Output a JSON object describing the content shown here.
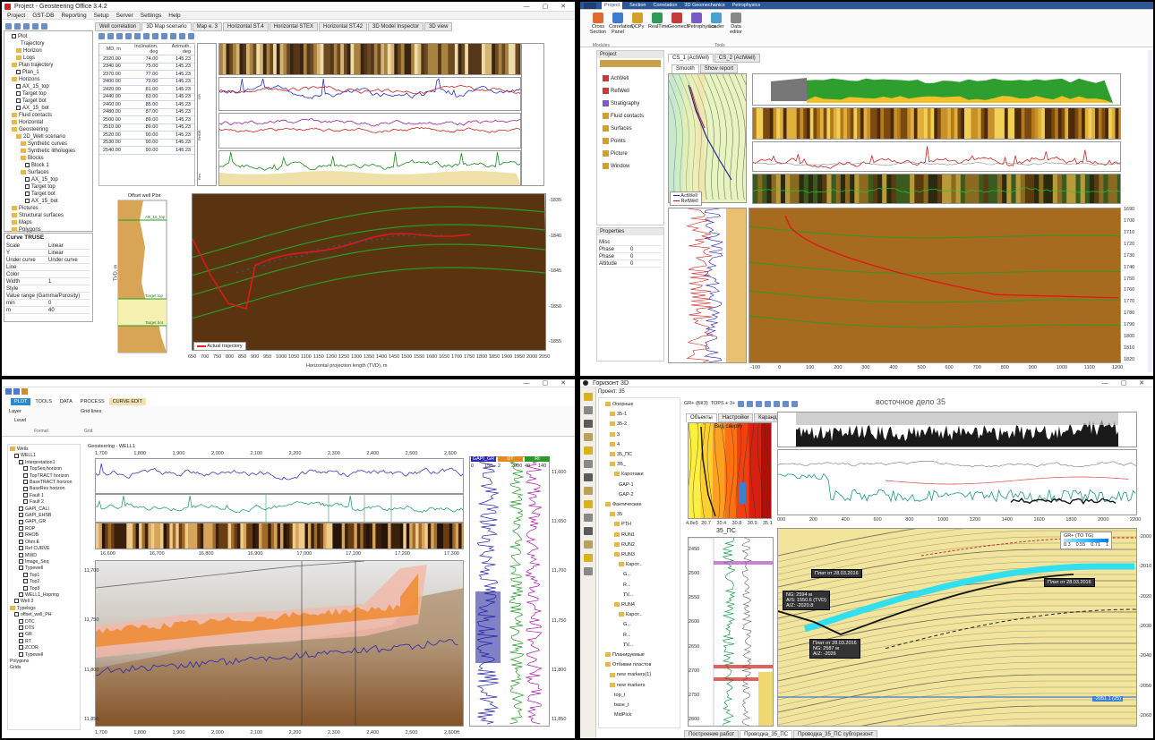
{
  "q1": {
    "window_title": "Project - Geosteering Office 3.4.2",
    "menu": [
      "Project",
      "GST-DB",
      "Reporting",
      "Setup",
      "Server",
      "Settings",
      "Help"
    ],
    "tabs": [
      "Well correlation",
      "3D Map scenario",
      "Map e. 3",
      "Horizontal ST.4",
      "Horizontal STEX",
      "Horizontal ST.42",
      "3D Model Inspector",
      "3D view"
    ],
    "tree": [
      {
        "label": "Plot",
        "indent": 1,
        "type": "check"
      },
      {
        "label": "Trajectory",
        "indent": 3,
        "type": "none"
      },
      {
        "label": "Horizon",
        "indent": 2,
        "type": "folder"
      },
      {
        "label": "Logs",
        "indent": 2,
        "type": "folder"
      },
      {
        "label": "Plan trajectory",
        "indent": 1,
        "type": "folder"
      },
      {
        "label": "Plan_1",
        "indent": 2,
        "type": "check"
      },
      {
        "label": "Horizons",
        "indent": 1,
        "type": "folder"
      },
      {
        "label": "AX_15_top",
        "indent": 2,
        "type": "check"
      },
      {
        "label": "Target top",
        "indent": 2,
        "type": "check"
      },
      {
        "label": "Target bot",
        "indent": 2,
        "type": "check"
      },
      {
        "label": "AX_15_bot",
        "indent": 2,
        "type": "check"
      },
      {
        "label": "Fluid contacts",
        "indent": 1,
        "type": "folder"
      },
      {
        "label": "Horizontal",
        "indent": 1,
        "type": "folder"
      },
      {
        "label": "Geosteering",
        "indent": 1,
        "type": "folder"
      },
      {
        "label": "2D_Well scenario",
        "indent": 2,
        "type": "folder"
      },
      {
        "label": "Synthetic curves",
        "indent": 3,
        "type": "folder"
      },
      {
        "label": "Synthetic lithologies",
        "indent": 3,
        "type": "folder"
      },
      {
        "label": "Blocks",
        "indent": 3,
        "type": "folder"
      },
      {
        "label": "Block 1",
        "indent": 4,
        "type": "check"
      },
      {
        "label": "Surfaces",
        "indent": 3,
        "type": "folder"
      },
      {
        "label": "AX_15_top",
        "indent": 4,
        "type": "check"
      },
      {
        "label": "Target top",
        "indent": 4,
        "type": "check"
      },
      {
        "label": "Target bot",
        "indent": 4,
        "type": "check"
      },
      {
        "label": "AX_15_bot",
        "indent": 4,
        "type": "check"
      },
      {
        "label": "Pictures",
        "indent": 1,
        "type": "folder"
      },
      {
        "label": "Structural surfaces",
        "indent": 1,
        "type": "folder"
      },
      {
        "label": "Maps",
        "indent": 1,
        "type": "folder"
      },
      {
        "label": "Polygons",
        "indent": 1,
        "type": "folder"
      },
      {
        "label": "Well correlations",
        "indent": 1,
        "type": "folder"
      },
      {
        "label": "3D",
        "indent": 1,
        "type": "folder"
      },
      {
        "label": "3D view",
        "indent": 2,
        "type": "none"
      }
    ],
    "props_title": "Curve TRUSE",
    "props": [
      {
        "k": "Scale",
        "v": "Linear"
      },
      {
        "k": "Y",
        "v": "Linear"
      },
      {
        "k": "Under curve",
        "v": "Under curve"
      },
      {
        "k": "Line",
        "v": ""
      },
      {
        "k": "Color",
        "v": ""
      },
      {
        "k": "Width",
        "v": "1"
      },
      {
        "k": "Style",
        "v": ""
      },
      {
        "k": "Value range (Gamma/Porosity)",
        "v": ""
      },
      {
        "k": "min",
        "v": "0"
      },
      {
        "k": "m",
        "v": "40"
      }
    ],
    "table_headers": [
      "MD, m",
      "Inclination, deg",
      "Azimuth, deg"
    ],
    "table_rows": [
      [
        "2320.00",
        "74.00",
        "145.23"
      ],
      [
        "2340.00",
        "75.00",
        "145.23"
      ],
      [
        "2370.00",
        "77.00",
        "145.23"
      ],
      [
        "2400.00",
        "79.00",
        "145.23"
      ],
      [
        "2420.00",
        "81.00",
        "145.23"
      ],
      [
        "2440.00",
        "83.00",
        "145.23"
      ],
      [
        "2460.00",
        "85.00",
        "145.23"
      ],
      [
        "2480.00",
        "87.00",
        "145.23"
      ],
      [
        "2500.00",
        "89.00",
        "145.23"
      ],
      [
        "2510.00",
        "89.00",
        "145.23"
      ],
      [
        "2520.00",
        "90.00",
        "145.23"
      ],
      [
        "2530.00",
        "90.00",
        "145.23"
      ],
      [
        "2540.00",
        "90.00",
        "145.23"
      ]
    ],
    "log_panel_title": "Offset well Plot",
    "section_labels": [
      "AX_15_top",
      "Target top",
      "Target bot"
    ],
    "legend": "Actual trajectory",
    "xaxis_label": "Horizontal projection length (TVD), m",
    "xticks": [
      "650",
      "700",
      "750",
      "800",
      "850",
      "900",
      "950",
      "1000",
      "1050",
      "1100",
      "1150",
      "1200",
      "1250",
      "1300",
      "1350",
      "1400",
      "1450",
      "1500",
      "1550",
      "1600",
      "1650",
      "1700",
      "1750",
      "1800",
      "1850",
      "1900",
      "1950",
      "2000",
      "2050"
    ],
    "yticks_left": [
      "1895",
      "1900",
      "1905",
      "1910",
      "1915",
      "1920"
    ],
    "yticks_right": [
      "-1835",
      "-1840",
      "-1845",
      "-1850",
      "-1855"
    ],
    "yaxis_label": "TVD, m"
  },
  "q2": {
    "ribbon_tabs": [
      "Project",
      "Section",
      "Correlation",
      "3D Geomechanics",
      "Petrophysics"
    ],
    "ribbon_buttons": [
      "Cross Section",
      "Correlation Panel",
      "QCPy",
      "RealTime",
      "Geomech",
      "Petrophysics",
      "Loader",
      "Data editor"
    ],
    "ribbon_groups": [
      "Modules",
      "Tools"
    ],
    "project_label": "Project",
    "project_tree": [
      "ActWell",
      "RefWell",
      "Stratigraphy",
      "Fluid contacts",
      "Surfaces",
      "Points",
      "Picture",
      "Window"
    ],
    "doc_tabs": [
      "CS_1 (ActWell)",
      "CS_2 (ActWell)"
    ],
    "view_buttons": [
      "Smooth",
      "Show report"
    ],
    "properties_label": "Properties",
    "properties": [
      {
        "k": "Misc",
        "v": ""
      },
      {
        "k": "Phase",
        "v": "0"
      },
      {
        "k": "Phase",
        "v": "0"
      },
      {
        "k": "Altitude",
        "v": "0"
      }
    ],
    "map_legend": [
      "ActWell",
      "RefWell"
    ],
    "depth_ticks": [
      "1690",
      "1700",
      "1710",
      "1720",
      "1730",
      "1740",
      "1750",
      "1760",
      "1770",
      "1780",
      "1790",
      "1800",
      "1810",
      "1820"
    ],
    "x_ticks": [
      "-100",
      "0",
      "100",
      "200",
      "300",
      "400",
      "500",
      "600",
      "700",
      "800",
      "900",
      "1000",
      "1100",
      "1200"
    ]
  },
  "q3": {
    "ribbon_tabs": [
      "PLOT",
      "TOOLS",
      "DATA",
      "PROCESS",
      "CURVE EDIT"
    ],
    "ribbon_groups": [
      "Format",
      "Grid"
    ],
    "ribbon_items": [
      "Layer",
      "Level",
      "Grid lines"
    ],
    "tree": [
      {
        "label": "Wells",
        "indent": 0,
        "type": "folder"
      },
      {
        "label": "WELL1",
        "indent": 1,
        "type": "check"
      },
      {
        "label": "Interpretation1",
        "indent": 2,
        "type": "check"
      },
      {
        "label": "TopSeq horizon",
        "indent": 3,
        "type": "check"
      },
      {
        "label": "TopTRACT horizon",
        "indent": 3,
        "type": "check"
      },
      {
        "label": "BaseTRACT horizon",
        "indent": 3,
        "type": "check"
      },
      {
        "label": "BaseRes horizon",
        "indent": 3,
        "type": "check"
      },
      {
        "label": "Fault 1",
        "indent": 3,
        "type": "check"
      },
      {
        "label": "Fault 2",
        "indent": 3,
        "type": "check"
      },
      {
        "label": "GAPI_CALI",
        "indent": 2,
        "type": "check"
      },
      {
        "label": "GAPI_EHSB",
        "indent": 2,
        "type": "check"
      },
      {
        "label": "GAPI_GR",
        "indent": 2,
        "type": "check"
      },
      {
        "label": "ROP",
        "indent": 2,
        "type": "check"
      },
      {
        "label": "RHOB",
        "indent": 2,
        "type": "check"
      },
      {
        "label": "Ohm.E",
        "indent": 2,
        "type": "check"
      },
      {
        "label": "Ref CURVE",
        "indent": 2,
        "type": "check"
      },
      {
        "label": "MWD",
        "indent": 2,
        "type": "check"
      },
      {
        "label": "Image_Seq",
        "indent": 2,
        "type": "check"
      },
      {
        "label": "Typewell",
        "indent": 2,
        "type": "check"
      },
      {
        "label": "Top1",
        "indent": 3,
        "type": "check"
      },
      {
        "label": "Top2",
        "indent": 3,
        "type": "check"
      },
      {
        "label": "Top3",
        "indent": 3,
        "type": "check"
      },
      {
        "label": "WELL1_Hspring",
        "indent": 2,
        "type": "check"
      },
      {
        "label": "Well 3",
        "indent": 1,
        "type": "check"
      },
      {
        "label": "Typelogs",
        "indent": 0,
        "type": "folder"
      },
      {
        "label": "offset_well_PH",
        "indent": 1,
        "type": "check"
      },
      {
        "label": "DTC",
        "indent": 2,
        "type": "check"
      },
      {
        "label": "DTS",
        "indent": 2,
        "type": "check"
      },
      {
        "label": "GR",
        "indent": 2,
        "type": "check"
      },
      {
        "label": "RT",
        "indent": 2,
        "type": "check"
      },
      {
        "label": "ZCOR",
        "indent": 2,
        "type": "check"
      },
      {
        "label": "Typewell",
        "indent": 2,
        "type": "check"
      },
      {
        "label": "Polygons",
        "indent": 0,
        "type": "none"
      },
      {
        "label": "Grids",
        "indent": 0,
        "type": "none"
      }
    ],
    "view_title": "Geosteering - WELL1",
    "x_ticks_top": [
      "1,700",
      "1,800",
      "1,900",
      "2,000",
      "2,100",
      "2,200",
      "2,300",
      "2,400",
      "2,500",
      "2,600"
    ],
    "x_ticks_mid": [
      "16,600",
      "16,700",
      "16,800",
      "16,900",
      "17,000",
      "17,100",
      "17,200",
      "17,300"
    ],
    "x_ticks_bottom": [
      "1,700",
      "1,800",
      "1,900",
      "2,000",
      "2,100",
      "2,200",
      "2,300",
      "2,400",
      "2,500",
      "2,600"
    ],
    "y_ticks": [
      "11,700",
      "11,750",
      "11,800",
      "11,850"
    ],
    "typelog_header": [
      "GAPI_GR",
      "DT",
      "Rt"
    ],
    "typelog_scale": [
      "0",
      "150",
      "2",
      "2000",
      "40",
      "140"
    ],
    "typelog_depths": [
      "11,600",
      "11,650",
      "11,700",
      "11,750",
      "11,800",
      "11,850"
    ],
    "bottom_unit": "ft"
  },
  "q4": {
    "window_title": "Горизонт 3D",
    "project": "Проект: 35",
    "tree": [
      {
        "label": "Опорные",
        "indent": 1,
        "type": "folder"
      },
      {
        "label": "35-1",
        "indent": 2,
        "type": "folder"
      },
      {
        "label": "35-2",
        "indent": 2,
        "type": "folder"
      },
      {
        "label": "3",
        "indent": 2,
        "type": "folder"
      },
      {
        "label": "4",
        "indent": 2,
        "type": "folder"
      },
      {
        "label": "35_ПС",
        "indent": 2,
        "type": "folder"
      },
      {
        "label": "ЗБ_",
        "indent": 2,
        "type": "folder"
      },
      {
        "label": "Каротажи",
        "indent": 3,
        "type": "folder"
      },
      {
        "label": "GAP-1",
        "indent": 4,
        "type": "none"
      },
      {
        "label": "GAP-2",
        "indent": 4,
        "type": "none"
      },
      {
        "label": "Фактические",
        "indent": 1,
        "type": "folder"
      },
      {
        "label": "35",
        "indent": 2,
        "type": "folder"
      },
      {
        "label": "PTH",
        "indent": 3,
        "type": "folder"
      },
      {
        "label": "RUN1",
        "indent": 3,
        "type": "folder"
      },
      {
        "label": "RUN2",
        "indent": 3,
        "type": "folder"
      },
      {
        "label": "RUN3",
        "indent": 3,
        "type": "folder"
      },
      {
        "label": "Карот...",
        "indent": 4,
        "type": "folder"
      },
      {
        "label": "G...",
        "indent": 5,
        "type": "none"
      },
      {
        "label": "R...",
        "indent": 5,
        "type": "none"
      },
      {
        "label": "TV...",
        "indent": 5,
        "type": "none"
      },
      {
        "label": "RUN4",
        "indent": 3,
        "type": "folder"
      },
      {
        "label": "Карот...",
        "indent": 4,
        "type": "folder"
      },
      {
        "label": "G...",
        "indent": 5,
        "type": "none"
      },
      {
        "label": "R...",
        "indent": 5,
        "type": "none"
      },
      {
        "label": "TV...",
        "indent": 5,
        "type": "none"
      },
      {
        "label": "Планируемые",
        "indent": 1,
        "type": "folder"
      },
      {
        "label": "Отбивки пластов",
        "indent": 1,
        "type": "folder"
      },
      {
        "label": "new markers(1)",
        "indent": 2,
        "type": "folder"
      },
      {
        "label": "new markers",
        "indent": 2,
        "type": "folder"
      },
      {
        "label": "top_t",
        "indent": 3,
        "type": "none"
      },
      {
        "label": "base_t",
        "indent": 3,
        "type": "none"
      },
      {
        "label": "MidPick",
        "indent": 3,
        "type": "none"
      }
    ],
    "toolbar_items": [
      "GR+ (БКЗ)",
      "TOPS + 3+"
    ],
    "section_title": "восточное дело 35",
    "subtabs": [
      "Объекты",
      "Настройки",
      "Карандаш"
    ],
    "map_title": "Вид сверху",
    "well_label": "35_ПС",
    "color_scale": [
      "GR+ (TO TG)",
      "0.3",
      "0.55",
      "0.71",
      "1"
    ],
    "map_ticks": [
      "4.8e5",
      "20.7",
      "30.4",
      "30.8",
      "30.9",
      "35.1"
    ],
    "x_ticks": [
      "000",
      "200",
      "400",
      "600",
      "800",
      "1000",
      "1200",
      "1400",
      "1600",
      "1800",
      "2000",
      "2200"
    ],
    "depth_ticks_section": [
      "-2000",
      "-2010",
      "-2020",
      "-2030",
      "-2040",
      "-2050",
      "-2060"
    ],
    "depth_ticks_log": [
      "2450",
      "2500",
      "2550",
      "2600",
      "2650",
      "2700",
      "2750",
      "2800"
    ],
    "callouts": [
      "Плат от 28.03.2016",
      "NG: 2594 м",
      "A/S: 1550.6 (TVD)",
      "A/Z: -2020.8",
      "Плат от 28.03.2016",
      "NG: 2587 м",
      "A/Z: -2026"
    ],
    "right_callout": "Плат от 28.03.2016",
    "bottom_line_label": "-2051.1 (25)",
    "bottom_tabs": [
      "Построение работ",
      "Проводка_35_ПС",
      "Проводка_35_ПС субгоризонт"
    ]
  }
}
